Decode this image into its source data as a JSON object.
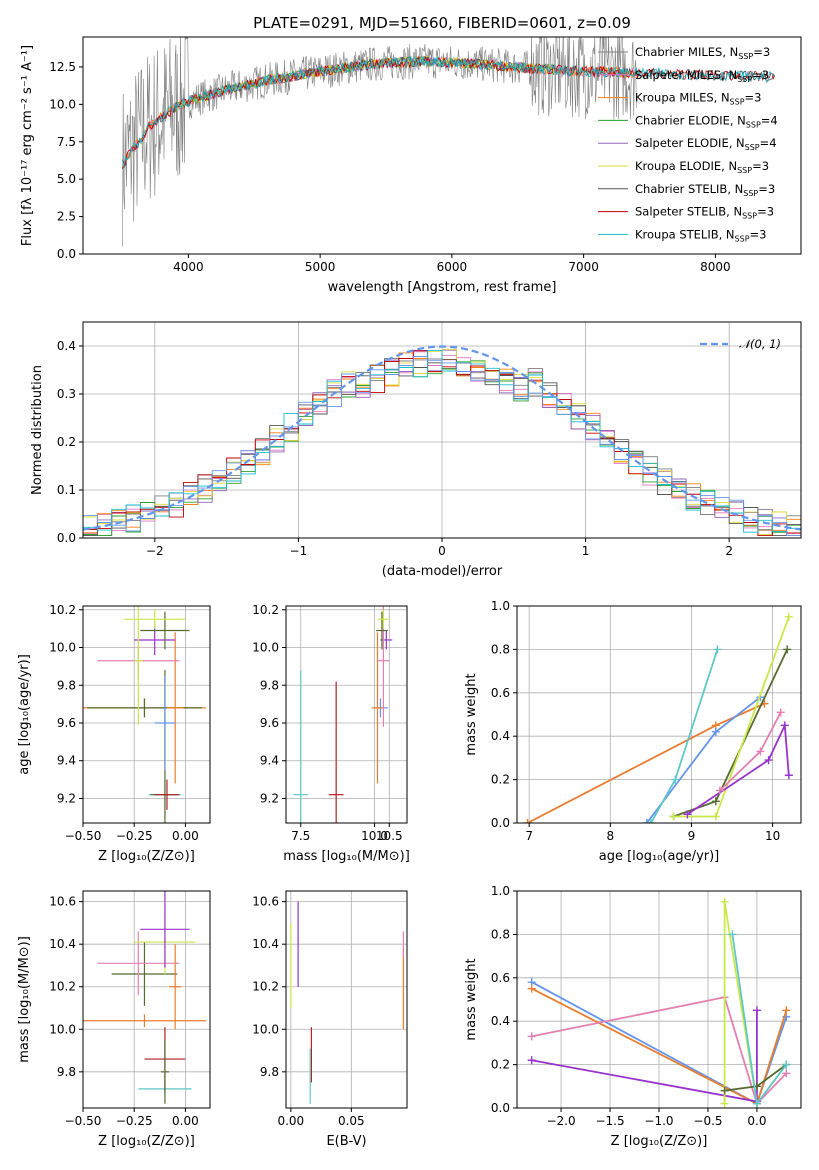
{
  "title": "PLATE=0291, MJD=51660, FIBERID=0601, z=0.09",
  "colors": {
    "chabrier_miles": "#7f7f7f",
    "salpeter_miles": "#e377c2",
    "kroupa_miles": "#ff7f0e",
    "chabrier_elodie": "#2ca02c",
    "salpeter_elodie": "#9467bd",
    "kroupa_elodie": "#dbdb3d",
    "chabrier_stelib": "#555555",
    "salpeter_stelib": "#c00000",
    "kroupa_stelib": "#17becf",
    "sum_blue": "#6495ed",
    "sum_orange": "#e87d2e",
    "sum_purple": "#9932cc",
    "sum_pink": "#e47fb3",
    "sum_lime": "#c9e84a",
    "sum_green": "#556b2f",
    "sum_cyan": "#5fc7c7",
    "sum_red": "#b22222"
  },
  "chart_data": [
    {
      "id": "spectrum",
      "type": "line",
      "title": "PLATE=0291, MJD=51660, FIBERID=0601, z=0.09",
      "xlabel": "wavelength [Angstrom, rest frame]",
      "ylabel": "Flux [fλ 10⁻¹⁷ erg cm⁻² s⁻¹ A⁻¹]",
      "xlim": [
        3200,
        8650
      ],
      "ylim": [
        0,
        14.5
      ],
      "xticks": [
        "4000",
        "5000",
        "6000",
        "7000",
        "8000"
      ],
      "yticks": [
        "0.0",
        "2.5",
        "5.0",
        "7.5",
        "10.0",
        "12.5"
      ],
      "legend_position": "right",
      "series": [
        {
          "name": "Chabrier MILES, N",
          "sub": "SSP",
          "suffix": "=3"
        },
        {
          "name": "Salpeter MILES, N",
          "sub": "SSP",
          "suffix": "=3"
        },
        {
          "name": "Kroupa MILES, N",
          "sub": "SSP",
          "suffix": "=3"
        },
        {
          "name": "Chabrier ELODIE, N",
          "sub": "SSP",
          "suffix": "=4"
        },
        {
          "name": "Salpeter ELODIE, N",
          "sub": "SSP",
          "suffix": "=4"
        },
        {
          "name": "Kroupa ELODIE, N",
          "sub": "SSP",
          "suffix": "=3"
        },
        {
          "name": "Chabrier STELIB, N",
          "sub": "SSP",
          "suffix": "=3"
        },
        {
          "name": "Salpeter STELIB, N",
          "sub": "SSP",
          "suffix": "=3"
        },
        {
          "name": "Kroupa STELIB, N",
          "sub": "SSP",
          "suffix": "=3"
        }
      ],
      "continuum": {
        "x": [
          3500,
          3700,
          3900,
          4000,
          4300,
          4600,
          5000,
          5400,
          5800,
          6200,
          6600,
          7000,
          7400,
          7800,
          8200,
          8450
        ],
        "y": [
          6.0,
          8.5,
          9.8,
          10.2,
          11.0,
          11.6,
          12.2,
          12.7,
          12.9,
          12.7,
          12.4,
          12.2,
          12.1,
          12.0,
          11.9,
          11.8
        ]
      }
    },
    {
      "id": "residuals",
      "type": "histogram",
      "xlabel": "(data-model)/error",
      "ylabel": "Normed distribution",
      "xlim": [
        -2.5,
        2.5
      ],
      "ylim": [
        0,
        0.45
      ],
      "xticks": [
        "−2",
        "−1",
        "0",
        "1",
        "2"
      ],
      "yticks": [
        "0.0",
        "0.1",
        "0.2",
        "0.3",
        "0.4"
      ],
      "legend": [
        "𝒩(0, 1)"
      ],
      "legend_position": "top-right",
      "bin_width": 0.1,
      "gaussian_peak": 0.399
    },
    {
      "id": "age_vs_Z",
      "type": "errorbar",
      "xlabel": "Z [log₁₀(Z/Z⊙)]",
      "ylabel": "age  [log₁₀(age/yr)]",
      "xlim": [
        -0.5,
        0.12
      ],
      "ylim": [
        9.07,
        10.22
      ],
      "xticks": [
        "−0.50",
        "−0.25",
        "0.00"
      ],
      "yticks": [
        "9.2",
        "9.4",
        "9.6",
        "9.8",
        "10.0",
        "10.2"
      ],
      "points": [
        {
          "x": -0.1,
          "y": 9.22,
          "xerr": 0.08,
          "yerr": 0.08,
          "color": "sum_cyan"
        },
        {
          "x": -0.1,
          "y": 9.22,
          "xerr": 0.07,
          "yerr": 0.66,
          "color": "sum_green"
        },
        {
          "x": -0.09,
          "y": 9.22,
          "xerr": 0.06,
          "yerr": 0.08,
          "color": "sum_red"
        },
        {
          "x": -0.2,
          "y": 9.68,
          "xerr": 0.3,
          "yerr": 0.05,
          "color": "sum_orange"
        },
        {
          "x": -0.2,
          "y": 9.68,
          "xerr": 0.28,
          "yerr": 0.05,
          "color": "sum_green"
        },
        {
          "x": -0.05,
          "y": 9.68,
          "xerr": 0.04,
          "yerr": 0.4,
          "color": "sum_orange"
        },
        {
          "x": -0.1,
          "y": 9.6,
          "xerr": 0.05,
          "yerr": 0.25,
          "color": "sum_blue"
        },
        {
          "x": -0.23,
          "y": 9.93,
          "xerr": 0.2,
          "yerr": 0.1,
          "color": "sum_pink"
        },
        {
          "x": -0.15,
          "y": 10.04,
          "xerr": 0.1,
          "yerr": 0.08,
          "color": "sum_purple"
        },
        {
          "x": -0.1,
          "y": 10.09,
          "xerr": 0.12,
          "yerr": 0.1,
          "color": "sum_green"
        },
        {
          "x": -0.15,
          "y": 10.15,
          "xerr": 0.15,
          "yerr": 0.05,
          "color": "sum_lime"
        },
        {
          "x": -0.23,
          "y": 9.93,
          "xerr": 0.02,
          "yerr": 0.34,
          "color": "sum_lime"
        }
      ]
    },
    {
      "id": "age_vs_mass",
      "type": "errorbar",
      "xlabel": "mass [log₁₀(M/M⊙)]",
      "ylabel": "",
      "xlim": [
        7.0,
        11.1
      ],
      "ylim": [
        9.07,
        10.22
      ],
      "xticks": [
        "7.5",
        "10.0",
        "10.5"
      ],
      "yticks": [
        "9.2",
        "9.4",
        "9.6",
        "9.8",
        "10.0",
        "10.2"
      ],
      "points": [
        {
          "x": 7.5,
          "y": 9.22,
          "xerr": 0.25,
          "yerr": 0.66,
          "color": "sum_cyan"
        },
        {
          "x": 8.7,
          "y": 9.22,
          "xerr": 0.25,
          "yerr": 0.6,
          "color": "sum_red"
        },
        {
          "x": 10.2,
          "y": 9.68,
          "xerr": 0.25,
          "yerr": 0.05,
          "color": "sum_blue"
        },
        {
          "x": 10.1,
          "y": 9.68,
          "xerr": 0.2,
          "yerr": 0.4,
          "color": "sum_orange"
        },
        {
          "x": 10.4,
          "y": 10.04,
          "xerr": 0.2,
          "yerr": 0.05,
          "color": "sum_purple"
        },
        {
          "x": 10.3,
          "y": 9.93,
          "xerr": 0.2,
          "yerr": 0.35,
          "color": "sum_pink"
        },
        {
          "x": 10.25,
          "y": 10.09,
          "xerr": 0.2,
          "yerr": 0.1,
          "color": "sum_green"
        },
        {
          "x": 10.3,
          "y": 10.15,
          "xerr": 0.2,
          "yerr": 0.05,
          "color": "sum_lime"
        }
      ]
    },
    {
      "id": "mass_weight_vs_age",
      "type": "line",
      "xlabel": "age  [log₁₀(age/yr)]",
      "ylabel": "mass weight",
      "xlim": [
        6.85,
        10.35
      ],
      "ylim": [
        0,
        1.0
      ],
      "xticks": [
        "7",
        "8",
        "9",
        "10"
      ],
      "yticks": [
        "0.0",
        "0.2",
        "0.4",
        "0.6",
        "0.8",
        "1.0"
      ],
      "series": [
        {
          "color": "sum_orange",
          "x": [
            6.98,
            9.3,
            9.9
          ],
          "y": [
            0.0,
            0.45,
            0.55
          ]
        },
        {
          "color": "sum_blue",
          "x": [
            8.45,
            9.3,
            9.85
          ],
          "y": [
            0.0,
            0.42,
            0.58
          ]
        },
        {
          "color": "sum_cyan",
          "x": [
            8.5,
            8.8,
            9.32
          ],
          "y": [
            0.0,
            0.2,
            0.8
          ]
        },
        {
          "color": "sum_green",
          "x": [
            8.78,
            9.3,
            10.18
          ],
          "y": [
            0.03,
            0.1,
            0.8
          ]
        },
        {
          "color": "sum_lime",
          "x": [
            8.78,
            9.3,
            10.2
          ],
          "y": [
            0.03,
            0.03,
            0.95
          ]
        },
        {
          "color": "sum_purple",
          "x": [
            8.95,
            9.95,
            10.15,
            10.2
          ],
          "y": [
            0.04,
            0.29,
            0.45,
            0.22
          ]
        },
        {
          "color": "sum_pink",
          "x": [
            9.35,
            9.85,
            10.1
          ],
          "y": [
            0.15,
            0.33,
            0.51
          ]
        }
      ]
    },
    {
      "id": "mass_vs_Z",
      "type": "errorbar",
      "xlabel": "Z [log₁₀(Z/Z⊙)]",
      "ylabel": "mass [log₁₀(M/M⊙)]",
      "xlim": [
        -0.5,
        0.12
      ],
      "ylim": [
        9.63,
        10.65
      ],
      "xticks": [
        "−0.50",
        "−0.25",
        "0.00"
      ],
      "yticks": [
        "9.8",
        "10.0",
        "10.2",
        "10.4",
        "10.6"
      ],
      "points": [
        {
          "x": -0.2,
          "y": 10.04,
          "xerr": 0.3,
          "yerr": 0.03,
          "color": "sum_orange"
        },
        {
          "x": -0.1,
          "y": 9.72,
          "xerr": 0.13,
          "yerr": 0.03,
          "color": "sum_cyan"
        },
        {
          "x": -0.1,
          "y": 9.86,
          "xerr": 0.1,
          "yerr": 0.15,
          "color": "sum_red"
        },
        {
          "x": -0.1,
          "y": 9.8,
          "xerr": 0.02,
          "yerr": 0.15,
          "color": "sum_green"
        },
        {
          "x": -0.2,
          "y": 10.26,
          "xerr": 0.16,
          "yerr": 0.15,
          "color": "sum_green"
        },
        {
          "x": -0.23,
          "y": 10.31,
          "xerr": 0.2,
          "yerr": 0.15,
          "color": "sum_pink"
        },
        {
          "x": -0.1,
          "y": 10.41,
          "xerr": 0.15,
          "yerr": 0.15,
          "color": "sum_lime"
        },
        {
          "x": -0.1,
          "y": 10.47,
          "xerr": 0.12,
          "yerr": 0.18,
          "color": "sum_purple"
        },
        {
          "x": -0.05,
          "y": 10.2,
          "xerr": 0.03,
          "yerr": 0.2,
          "color": "sum_orange"
        }
      ]
    },
    {
      "id": "mass_vs_EBV",
      "type": "errorbar",
      "xlabel": "E(B-V)",
      "ylabel": "",
      "xlim": [
        -0.004,
        0.096
      ],
      "ylim": [
        9.63,
        10.65
      ],
      "xticks": [
        "0.00",
        "0.05"
      ],
      "yticks": [
        "9.8",
        "10.0",
        "10.2",
        "10.4",
        "10.6"
      ],
      "points": [
        {
          "x": 0.0,
          "y": 10.3,
          "xerr": 0.0,
          "yerr": 0.2,
          "color": "sum_lime"
        },
        {
          "x": 0.006,
          "y": 10.4,
          "xerr": 0.0,
          "yerr": 0.2,
          "color": "sum_purple"
        },
        {
          "x": 0.017,
          "y": 9.88,
          "xerr": 0.0,
          "yerr": 0.13,
          "color": "sum_red"
        },
        {
          "x": 0.016,
          "y": 9.78,
          "xerr": 0.0,
          "yerr": 0.13,
          "color": "sum_cyan"
        },
        {
          "x": 0.093,
          "y": 10.19,
          "xerr": 0.0,
          "yerr": 0.19,
          "color": "sum_orange"
        },
        {
          "x": 0.093,
          "y": 10.4,
          "xerr": 0.0,
          "yerr": 0.06,
          "color": "sum_pink"
        }
      ]
    },
    {
      "id": "mass_weight_vs_Z",
      "type": "line",
      "xlabel": "Z [log₁₀(Z/Z⊙)]",
      "ylabel": "mass weight",
      "xlim": [
        -2.45,
        0.45
      ],
      "ylim": [
        0,
        1.0
      ],
      "xticks": [
        "−2.0",
        "−1.5",
        "−1.0",
        "−0.5",
        "0.0"
      ],
      "yticks": [
        "0.0",
        "0.2",
        "0.4",
        "0.6",
        "0.8",
        "1.0"
      ],
      "series": [
        {
          "color": "sum_blue",
          "x": [
            -2.3,
            0.0,
            0.3
          ],
          "y": [
            0.58,
            0.02,
            0.42
          ]
        },
        {
          "color": "sum_orange",
          "x": [
            -2.3,
            0.0,
            0.3
          ],
          "y": [
            0.55,
            0.02,
            0.45
          ]
        },
        {
          "color": "sum_pink",
          "x": [
            -2.3,
            -0.33,
            0.0,
            0.3
          ],
          "y": [
            0.33,
            0.51,
            0.02,
            0.16
          ]
        },
        {
          "color": "sum_purple",
          "x": [
            -2.3,
            0.0,
            0.0
          ],
          "y": [
            0.22,
            0.03,
            0.45
          ]
        },
        {
          "color": "sum_lime",
          "x": [
            -0.33,
            -0.33,
            0.0
          ],
          "y": [
            0.02,
            0.95,
            0.02
          ]
        },
        {
          "color": "sum_green",
          "x": [
            -0.33,
            0.0,
            0.3
          ],
          "y": [
            0.08,
            0.1,
            0.2
          ]
        },
        {
          "color": "sum_cyan",
          "x": [
            -0.25,
            0.0,
            0.3
          ],
          "y": [
            0.8,
            0.02,
            0.2
          ]
        }
      ]
    }
  ]
}
